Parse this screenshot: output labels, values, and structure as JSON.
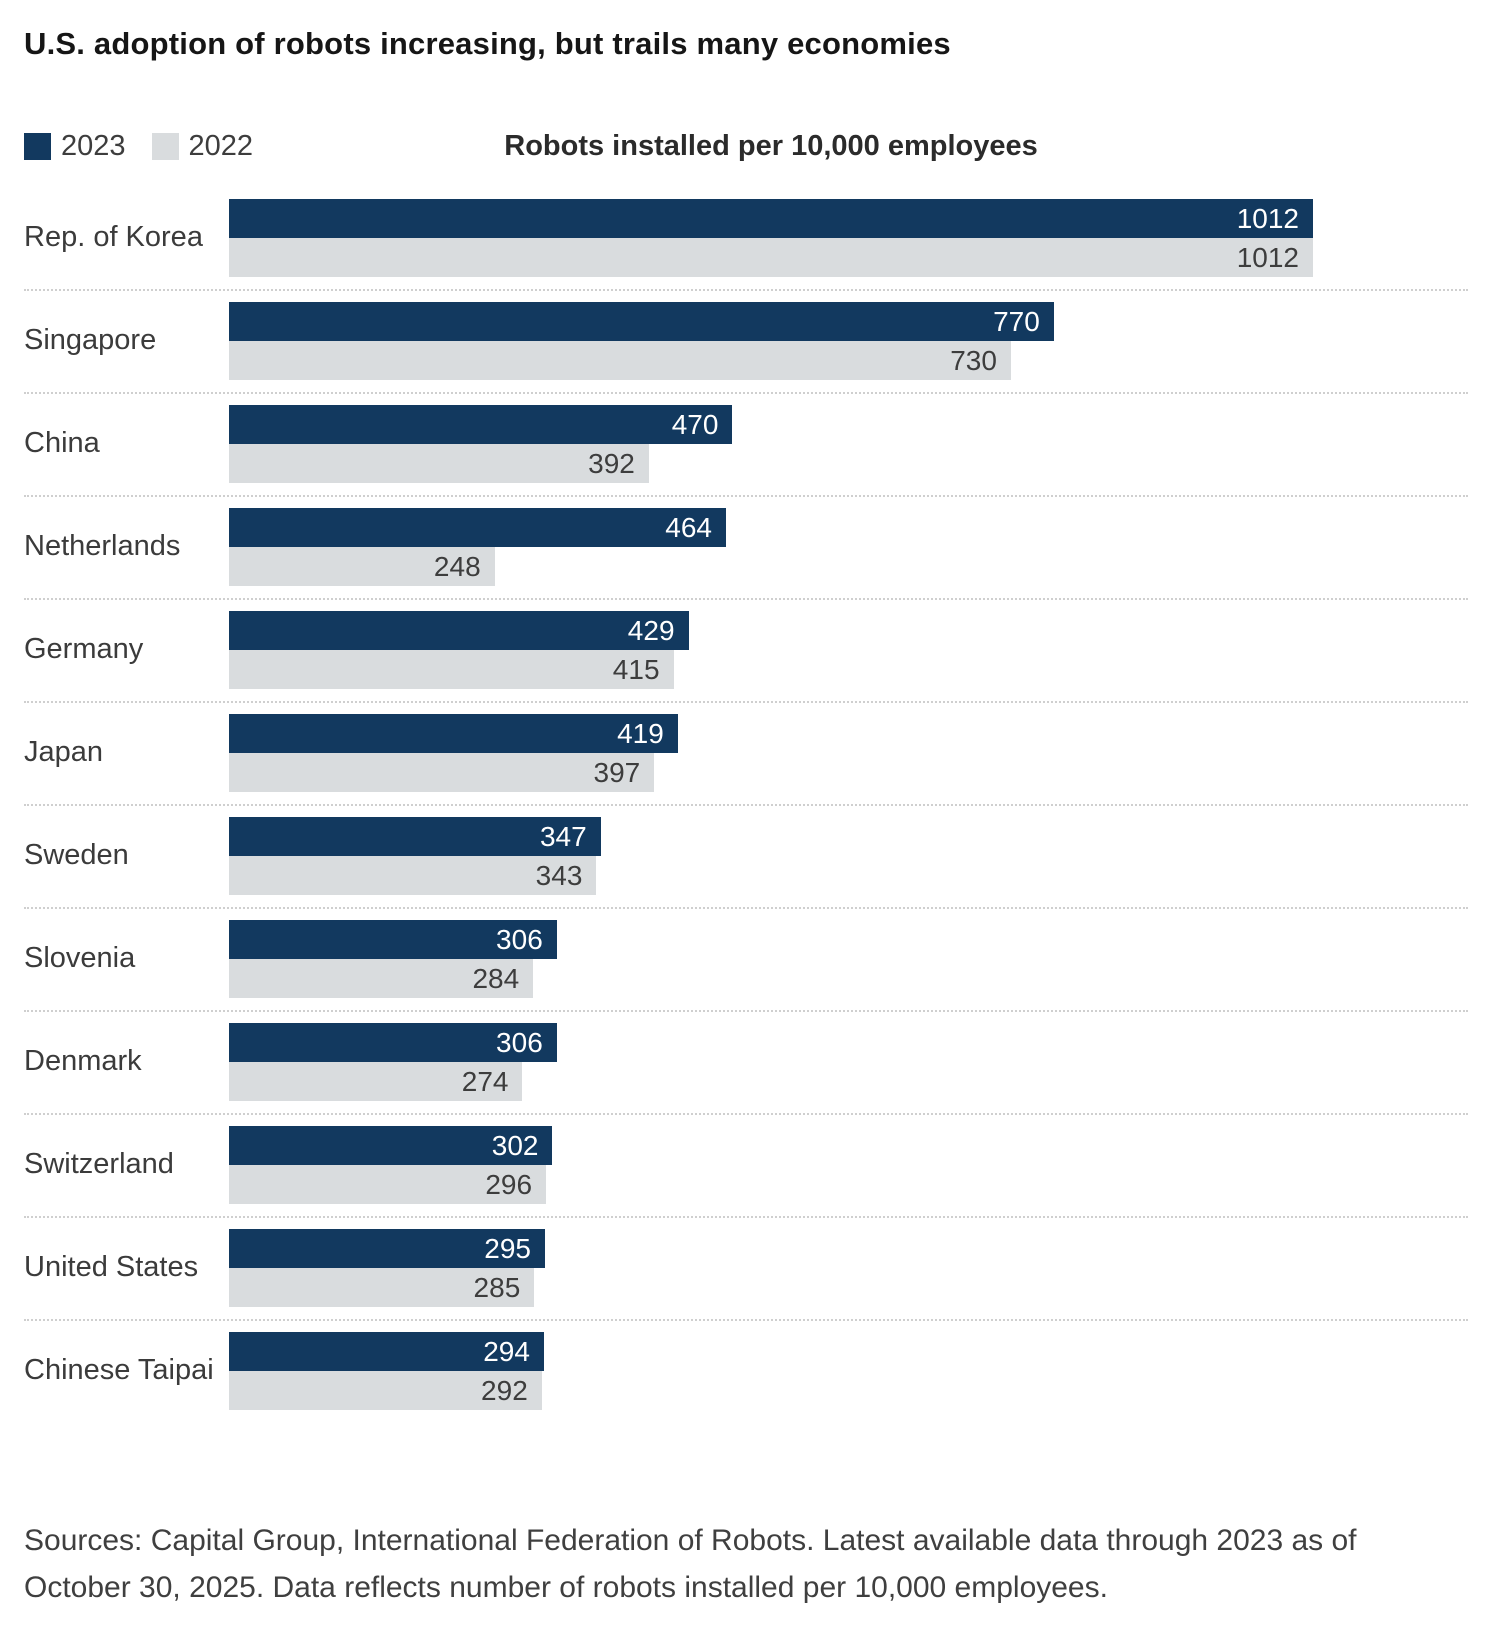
{
  "title": "U.S. adoption of robots increasing, but trails many economies",
  "legend": {
    "series_2023_label": "2023",
    "series_2022_label": "2022"
  },
  "axis_header": "Robots installed per 10,000 employees",
  "source_note": "Sources: Capital Group, International Federation of Robots. Latest available data through 2023 as of October 30, 2025. Data reflects number of robots installed per 10,000 employees.",
  "colors": {
    "series_2023": "#12395F",
    "series_2022": "#D9DCDE",
    "value_label_2023": "#FFFFFF",
    "value_label_2022": "#3D3D3D"
  },
  "chart_data": {
    "type": "bar",
    "orientation": "horizontal",
    "title": "U.S. adoption of robots increasing, but trails many economies",
    "subtitle": "Robots installed per 10,000 employees",
    "categories": [
      "Rep. of Korea",
      "Singapore",
      "China",
      "Netherlands",
      "Germany",
      "Japan",
      "Sweden",
      "Slovenia",
      "Denmark",
      "Switzerland",
      "United States",
      "Chinese Taipai"
    ],
    "series": [
      {
        "name": "2023",
        "values": [
          1012,
          770,
          470,
          464,
          429,
          419,
          347,
          306,
          306,
          302,
          295,
          294
        ]
      },
      {
        "name": "2022",
        "values": [
          1012,
          730,
          392,
          248,
          415,
          397,
          343,
          284,
          274,
          296,
          285,
          292
        ]
      }
    ],
    "xlim": [
      0,
      1012
    ],
    "grid": false,
    "legend_position": "top-left",
    "value_labels": "inside-end"
  }
}
